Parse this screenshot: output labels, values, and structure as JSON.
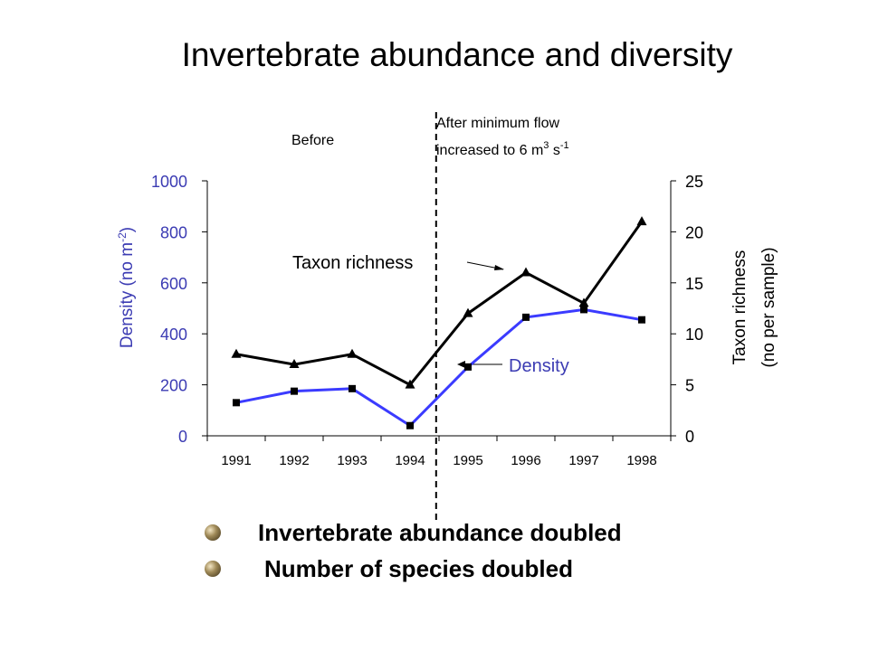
{
  "title": "Invertebrate abundance and diversity",
  "annotations": {
    "before": "Before",
    "after_line1": "After minimum flow",
    "after_line2_prefix": "increased to 6 m",
    "after_line2_sup1": "3",
    "after_line2_mid": " s",
    "after_line2_sup2": "-1",
    "taxon_richness": "Taxon richness",
    "density": "Density"
  },
  "bullets": [
    "Invertebrate abundance doubled",
    "Number of species doubled"
  ],
  "chart_data": {
    "type": "line",
    "categories": [
      "1991",
      "1992",
      "1993",
      "1994",
      "1995",
      "1996",
      "1997",
      "1998"
    ],
    "yleft": {
      "label_prefix": "Density (no m",
      "label_sup": "-2",
      "label_suffix": ")",
      "lim": [
        0,
        1000
      ],
      "ticks": [
        "0",
        "200",
        "400",
        "600",
        "800",
        "1000"
      ]
    },
    "yright": {
      "label_line1": "Taxon richness",
      "label_line2": "(no per sample)",
      "lim": [
        0,
        25
      ],
      "ticks": [
        "0",
        "5",
        "10",
        "15",
        "20",
        "25"
      ]
    },
    "series": [
      {
        "name": "Density",
        "axis": "left",
        "marker": "square",
        "color": "#3b3bff",
        "values": [
          130,
          175,
          185,
          40,
          270,
          465,
          495,
          455
        ]
      },
      {
        "name": "Taxon richness",
        "axis": "right",
        "marker": "triangle",
        "color": "#000000",
        "values": [
          8,
          7,
          8,
          5,
          12,
          16,
          13,
          21
        ]
      }
    ],
    "divider_after": "1994",
    "grid": false
  }
}
